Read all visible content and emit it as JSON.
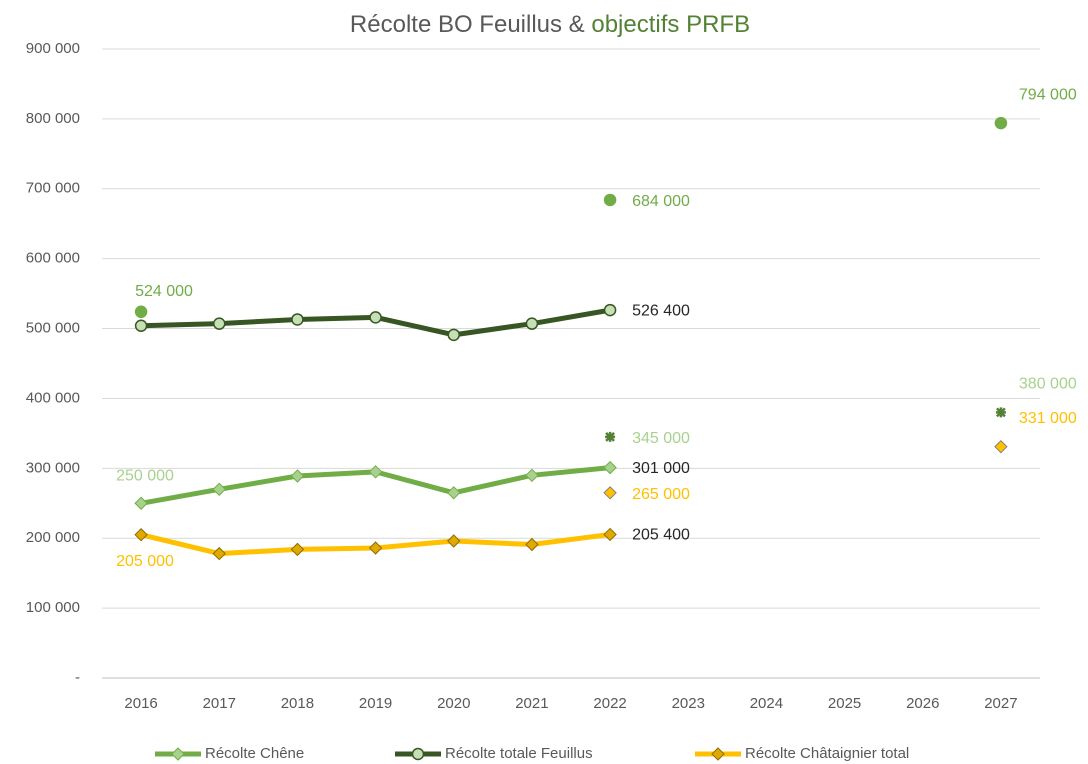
{
  "chart_data": {
    "type": "line",
    "title": "Récolte BO Feuillus &",
    "title_highlight": "objectifs PRFB",
    "title_highlight_color": "#548235",
    "categories": [
      "2016",
      "2017",
      "2018",
      "2019",
      "2020",
      "2021",
      "2022",
      "2023",
      "2024",
      "2025",
      "2026",
      "2027"
    ],
    "ylim": [
      0,
      900000
    ],
    "yticks": [
      {
        "value": 0,
        "label": "-"
      },
      {
        "value": 100000,
        "label": "100 000"
      },
      {
        "value": 200000,
        "label": "200 000"
      },
      {
        "value": 300000,
        "label": "300 000"
      },
      {
        "value": 400000,
        "label": "400 000"
      },
      {
        "value": 500000,
        "label": "500 000"
      },
      {
        "value": 600000,
        "label": "600 000"
      },
      {
        "value": 700000,
        "label": "700 000"
      },
      {
        "value": 800000,
        "label": "800 000"
      },
      {
        "value": 900000,
        "label": "900 000"
      }
    ],
    "grid": true,
    "legend": "bottom",
    "series": [
      {
        "name": "Récolte Chêne",
        "color": "#70ad47",
        "marker": "diamond",
        "values": [
          250000,
          270000,
          289000,
          295000,
          265000,
          290000,
          301000,
          null,
          null,
          null,
          null,
          null
        ],
        "value_labels": [
          "250 000",
          null,
          null,
          null,
          null,
          null,
          "301 000",
          null,
          null,
          null,
          null,
          null
        ]
      },
      {
        "name": "Récolte totale Feuillus",
        "color": "#375623",
        "marker": "circle",
        "values": [
          504000,
          507000,
          513000,
          516000,
          491000,
          507000,
          526400,
          null,
          null,
          null,
          null,
          null
        ],
        "value_labels": [
          null,
          null,
          null,
          null,
          null,
          null,
          "526 400",
          null,
          null,
          null,
          null,
          null
        ]
      },
      {
        "name": "Récolte Châtaignier total",
        "color": "#ffc000",
        "marker": "diamond",
        "values": [
          205000,
          178000,
          184000,
          186000,
          196000,
          191000,
          205400,
          null,
          null,
          null,
          null,
          null
        ],
        "value_labels": [
          "205 000",
          null,
          null,
          null,
          null,
          null,
          "205 400",
          null,
          null,
          null,
          null,
          null
        ]
      }
    ],
    "objectives": [
      {
        "color": "#70ad47",
        "marker": "circle",
        "values": [
          524000,
          null,
          null,
          null,
          null,
          null,
          684000,
          null,
          null,
          null,
          null,
          794000
        ],
        "value_labels": [
          "524 000",
          null,
          null,
          null,
          null,
          null,
          "684 000",
          null,
          null,
          null,
          null,
          "794 000"
        ]
      },
      {
        "color": "#a9d18e",
        "marker": "star",
        "values": [
          250000,
          null,
          null,
          null,
          null,
          null,
          345000,
          null,
          null,
          null,
          null,
          380000
        ],
        "value_labels": [
          null,
          null,
          null,
          null,
          null,
          null,
          "345 000",
          null,
          null,
          null,
          null,
          "380 000"
        ]
      },
      {
        "color": "#ffc000",
        "marker": "diamond",
        "values": [
          205000,
          null,
          null,
          null,
          null,
          null,
          265000,
          null,
          null,
          null,
          null,
          331000
        ],
        "value_labels": [
          null,
          null,
          null,
          null,
          null,
          null,
          "265 000",
          null,
          null,
          null,
          null,
          "331 000"
        ]
      }
    ]
  }
}
